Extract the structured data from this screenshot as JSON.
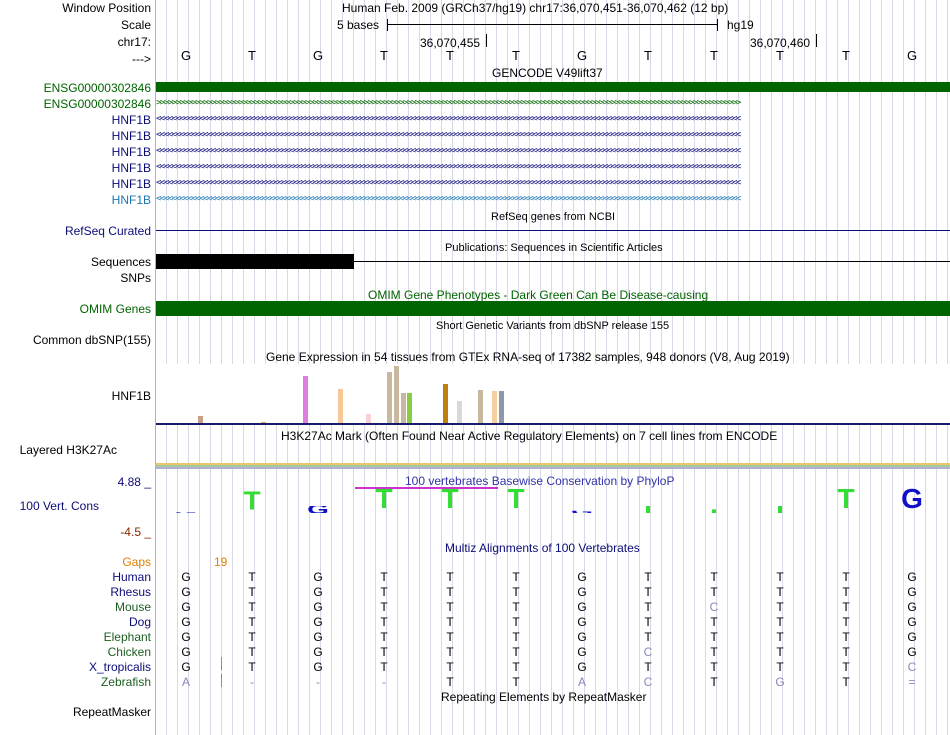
{
  "labels": {
    "window_position": "Window Position",
    "scale": "Scale",
    "chrom": "chr17:",
    "arrow": "--->",
    "gencode1": "ENSG00000302846",
    "gencode2": "ENSG00000302846",
    "hnf1b_1": "HNF1B",
    "hnf1b_2": "HNF1B",
    "hnf1b_3": "HNF1B",
    "hnf1b_4": "HNF1B",
    "hnf1b_5": "HNF1B",
    "hnf1b_6": "HNF1B",
    "refseq": "RefSeq Curated",
    "sequences": "Sequences",
    "snps": "SNPs",
    "omim": "OMIM Genes",
    "dbsnp": "Common dbSNP(155)",
    "gtex": "HNF1B",
    "h3k27ac": "Layered H3K27Ac",
    "cons_max": "4.88 _",
    "cons_label": "100 Vert. Cons",
    "cons_min": "-4.5 _",
    "gaps": "Gaps",
    "species": [
      "Human",
      "Rhesus",
      "Mouse",
      "Dog",
      "Elephant",
      "Chicken",
      "X_tropicalis",
      "Zebrafish"
    ],
    "repeatmasker": "RepeatMasker"
  },
  "header": {
    "assembly_position": "Human Feb. 2009 (GRCh37/hg19)   chr17:36,070,451-36,070,462 (12 bp)",
    "scale_text": "5 bases",
    "scale_db": "hg19",
    "pos1": "36,070,455",
    "pos2": "36,070,460",
    "bases": [
      "G",
      "T",
      "G",
      "T",
      "T",
      "T",
      "G",
      "T",
      "T",
      "T",
      "T",
      "G"
    ]
  },
  "tracks": {
    "gencode_title": "GENCODE V49lift37",
    "refseq_title": "RefSeq genes from NCBI",
    "pubs_title": "Publications: Sequences in Scientific Articles",
    "omim_title": "OMIM Gene Phenotypes - Dark Green Can Be Disease-causing",
    "dbsnp_title": "Short Genetic Variants from dbSNP release 155",
    "gtex_title": "Gene Expression in 54 tissues from GTEx RNA-seq of 17382 samples, 948 donors (V8, Aug 2019)",
    "h3k27ac_title": "H3K27Ac Mark (Often Found Near Active Regulatory Elements) on 7 cell lines from ENCODE",
    "phylop_title": "100 vertebrates Basewise Conservation by PhyloP",
    "multiz_title": "Multiz Alignments of 100 Vertebrates",
    "gaps_count": "19",
    "repeat_title": "Repeating Elements by RepeatMasker"
  },
  "alignment": [
    [
      "G",
      "T",
      "G",
      "T",
      "T",
      "T",
      "G",
      "T",
      "T",
      "T",
      "T",
      "G"
    ],
    [
      "G",
      "T",
      "G",
      "T",
      "T",
      "T",
      "G",
      "T",
      "T",
      "T",
      "T",
      "G"
    ],
    [
      "G",
      "T",
      "G",
      "T",
      "T",
      "T",
      "G",
      "T",
      "C",
      "T",
      "T",
      "G"
    ],
    [
      "G",
      "T",
      "G",
      "T",
      "T",
      "T",
      "G",
      "T",
      "T",
      "T",
      "T",
      "G"
    ],
    [
      "G",
      "T",
      "G",
      "T",
      "T",
      "T",
      "G",
      "T",
      "T",
      "T",
      "T",
      "G"
    ],
    [
      "G",
      "T",
      "G",
      "T",
      "T",
      "T",
      "G",
      "C",
      "T",
      "T",
      "T",
      "G"
    ],
    [
      "G",
      "T",
      "G",
      "T",
      "T",
      "T",
      "G",
      "T",
      "T",
      "T",
      "T",
      "C"
    ],
    [
      "A",
      "-",
      "-",
      "-",
      "T",
      "T",
      "A",
      "C",
      "T",
      "G",
      "T",
      "="
    ]
  ],
  "strand_glyphs": {
    "forward": ">>>>>>>>>>>>>>>>>>>>>>>>>>>>>>>>>>>>>>>>>>>>>>>>>>>>>>>>>>>>>>>>>>>>>>>>>>>>>>>>>>>>>>>>>>>>>>>>>>>>>>>>>>>>>>>>>>>>>>>>>>>>>>>>>>>>>>>>>>>>>>>>>>>>>",
    "reverse": "<<<<<<<<<<<<<<<<<<<<<<<<<<<<<<<<<<<<<<<<<<<<<<<<<<<<<<<<<<<<<<<<<<<<<<<<<<<<<<<<<<<<<<<<<<<<<<<<<<<<<<<<<<<<<<<<<<<<<<<<<<<<<<<<<<<<<<<<<<<<<<<<<<<<<"
  },
  "colors": {
    "gencode_green": "#006400",
    "hnf1b_navy": "#0c0c78",
    "hnf1b_blue": "#1e78b4",
    "refseq_navy": "#0c0c78",
    "omim_green": "#006400",
    "phylop_green": "#33dd33",
    "phylop_blue": "#1010cc",
    "gaps_orange": "#e08000",
    "species_green": "#1b5e20",
    "species_navy": "#0c0c78"
  }
}
